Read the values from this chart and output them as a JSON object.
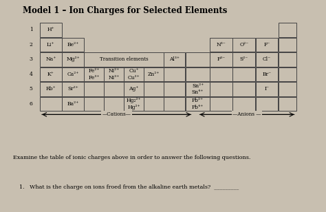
{
  "title": "Model 1 – Ion Charges for Selected Elements",
  "bg_color": "#c8bfb0",
  "cell_bg": "#c8bfb0",
  "border_color": "#444444",
  "title_fontsize": 8.5,
  "text_fontsize": 5.5,
  "small_fontsize": 4.8,
  "cell_texts": {
    "1_1": "H⁺",
    "2_1": "Li⁺",
    "2_2": "Be²⁺",
    "2_9": "N³⁻",
    "2_10": "O²⁻",
    "2_11": "F⁻",
    "3_1": "Na⁺",
    "3_2": "Mg²⁺",
    "3_7": "Al³⁺",
    "3_9": "P³⁻",
    "3_10": "S²⁻",
    "3_11": "Cl⁻",
    "4_1": "K⁺",
    "4_2": "Ca²⁺",
    "4_3": "Fe²⁺\nFe³⁺",
    "4_4": "Ni²⁺\nNi³⁺",
    "4_5": "Cu⁺\nCu²⁺",
    "4_6": "Zn²⁺",
    "4_11": "Br⁻",
    "5_1": "Rb⁺",
    "5_2": "Sr²⁺",
    "5_5": "Ag⁺",
    "5_8": "Sn²⁺\nSn⁴⁺",
    "5_11": "I⁻",
    "6_2": "Ba²⁺",
    "6_5": "Hg₂²⁺\nHg²⁺",
    "6_8": "Pb²⁺\nPb⁴⁺"
  },
  "transition_label": "Transition elements",
  "cations_label": "—Cations—",
  "anions_label": "—Anions —",
  "bottom_text1": "Examine the table of ionic charges above in order to answer the following questions.",
  "bottom_text2": "1.   What is the charge on ions froed from the alkaline earth metals?  _________"
}
